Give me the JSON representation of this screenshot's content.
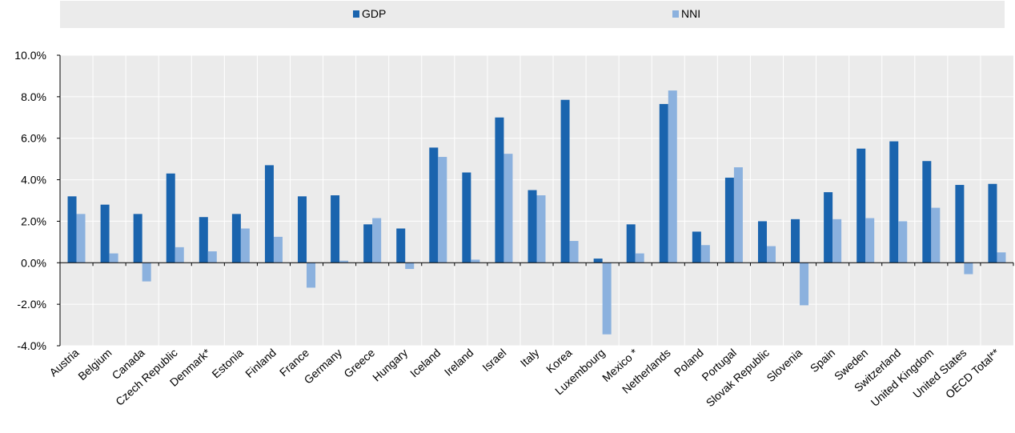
{
  "colors": {
    "gdp": "#1a64ae",
    "nni": "#8bb1de",
    "plot_bg": "#ebebeb",
    "legend_bg": "#ebebeb",
    "gridline": "#ffffff",
    "axis": "#000000",
    "text": "#000000"
  },
  "chart_data": {
    "type": "bar",
    "title": "",
    "xlabel": "",
    "ylabel": "",
    "ylim": [
      -4,
      10
    ],
    "yticks": [
      -4,
      -2,
      0,
      2,
      4,
      6,
      8,
      10
    ],
    "ytick_labels": [
      "-4.0%",
      "-2.0%",
      "0.0%",
      "2.0%",
      "4.0%",
      "6.0%",
      "8.0%",
      "10.0%"
    ],
    "grid": true,
    "legend_position": "top",
    "categories": [
      "Austria",
      "Belgium",
      "Canada",
      "Czech Republic",
      "Denmark*",
      "Estonia",
      "Finland",
      "France",
      "Germany",
      "Greece",
      "Hungary",
      "Iceland",
      "Ireland",
      "Israel",
      "Italy",
      "Korea",
      "Luxembourg",
      "Mexico *",
      "Netherlands",
      "Poland",
      "Portugal",
      "Slovak Republic",
      "Slovenia",
      "Spain",
      "Sweden",
      "Switzerland",
      "United Kingdom",
      "United States",
      "OECD Total**"
    ],
    "series": [
      {
        "name": "GDP",
        "values": [
          3.2,
          2.8,
          2.35,
          4.3,
          2.2,
          2.35,
          4.7,
          3.2,
          3.25,
          1.85,
          1.65,
          5.55,
          4.35,
          7.0,
          3.5,
          7.85,
          0.2,
          1.85,
          7.65,
          1.5,
          4.1,
          2.0,
          2.1,
          3.4,
          5.5,
          5.85,
          4.9,
          3.75,
          3.8
        ]
      },
      {
        "name": "NNI",
        "values": [
          2.35,
          0.45,
          -0.9,
          0.75,
          0.55,
          1.65,
          1.25,
          -1.2,
          0.1,
          2.15,
          -0.3,
          5.1,
          0.15,
          5.25,
          3.25,
          1.05,
          -3.45,
          0.45,
          8.3,
          0.85,
          4.6,
          0.8,
          -2.05,
          2.1,
          2.15,
          2.0,
          2.65,
          -0.55,
          0.5
        ]
      }
    ]
  }
}
